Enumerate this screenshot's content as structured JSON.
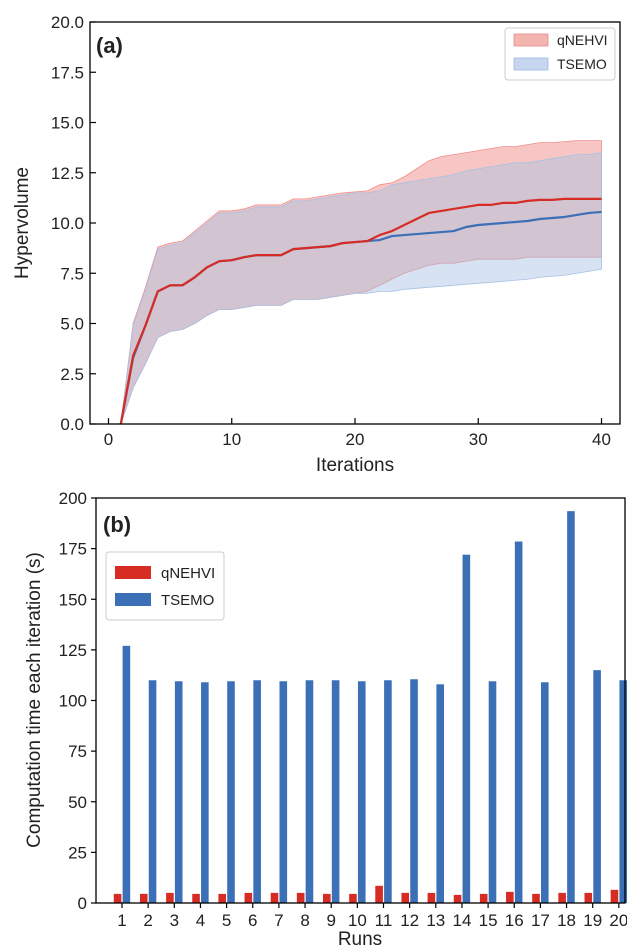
{
  "chart_data": [
    {
      "panel_label": "(a)",
      "type": "line",
      "xlabel": "Iterations",
      "ylabel": "Hypervolume",
      "xlim": [
        -1.5,
        41.5
      ],
      "ylim": [
        0,
        20
      ],
      "xticks": [
        0,
        10,
        20,
        30,
        40
      ],
      "yticks": [
        0.0,
        2.5,
        5.0,
        7.5,
        10.0,
        12.5,
        15.0,
        17.5,
        20.0
      ],
      "ytick_labels": [
        "0.0",
        "2.5",
        "5.0",
        "7.5",
        "10.0",
        "12.5",
        "15.0",
        "17.5",
        "20.0"
      ],
      "grid": false,
      "legend_position": "top-right",
      "x": [
        1,
        2,
        3,
        4,
        5,
        6,
        7,
        8,
        9,
        10,
        11,
        12,
        13,
        14,
        15,
        16,
        17,
        18,
        19,
        20,
        21,
        22,
        23,
        24,
        25,
        26,
        27,
        28,
        29,
        30,
        31,
        32,
        33,
        34,
        35,
        36,
        37,
        38,
        39,
        40
      ],
      "series": [
        {
          "name": "qNEHVI",
          "line_color": "#d62c24",
          "band_color": "#f08e8a",
          "mean": [
            0,
            3.4,
            4.9,
            6.6,
            6.9,
            6.9,
            7.3,
            7.8,
            8.1,
            8.15,
            8.3,
            8.4,
            8.4,
            8.4,
            8.7,
            8.75,
            8.8,
            8.85,
            9.0,
            9.05,
            9.1,
            9.4,
            9.6,
            9.9,
            10.2,
            10.5,
            10.6,
            10.7,
            10.8,
            10.9,
            10.9,
            11.0,
            11.0,
            11.1,
            11.15,
            11.15,
            11.2,
            11.2,
            11.2,
            11.2
          ],
          "upper": [
            0,
            5.0,
            6.8,
            8.8,
            9.0,
            9.1,
            9.6,
            10.1,
            10.6,
            10.6,
            10.7,
            10.9,
            10.9,
            10.9,
            11.2,
            11.2,
            11.3,
            11.4,
            11.5,
            11.55,
            11.6,
            11.9,
            12.0,
            12.3,
            12.7,
            13.1,
            13.3,
            13.4,
            13.5,
            13.6,
            13.7,
            13.8,
            13.8,
            13.9,
            14.0,
            14.0,
            14.05,
            14.1,
            14.1,
            14.1
          ],
          "lower": [
            0,
            1.8,
            3.0,
            4.3,
            4.6,
            4.7,
            5.0,
            5.4,
            5.7,
            5.7,
            5.8,
            5.9,
            5.9,
            5.9,
            6.2,
            6.2,
            6.2,
            6.3,
            6.4,
            6.5,
            6.6,
            6.9,
            7.2,
            7.5,
            7.7,
            7.9,
            8.0,
            8.0,
            8.1,
            8.2,
            8.2,
            8.2,
            8.2,
            8.3,
            8.3,
            8.3,
            8.3,
            8.3,
            8.3,
            8.3
          ]
        },
        {
          "name": "TSEMO",
          "line_color": "#3b6fb6",
          "band_color": "#a7c1e4",
          "mean": [
            0,
            3.3,
            4.9,
            6.6,
            6.9,
            6.9,
            7.3,
            7.8,
            8.1,
            8.15,
            8.3,
            8.4,
            8.4,
            8.4,
            8.7,
            8.75,
            8.8,
            8.85,
            9.0,
            9.05,
            9.1,
            9.15,
            9.35,
            9.4,
            9.45,
            9.5,
            9.55,
            9.6,
            9.8,
            9.9,
            9.95,
            10.0,
            10.05,
            10.1,
            10.2,
            10.25,
            10.3,
            10.4,
            10.5,
            10.55
          ],
          "upper": [
            0,
            4.9,
            6.7,
            8.7,
            8.9,
            9.0,
            9.5,
            10.0,
            10.5,
            10.5,
            10.6,
            10.8,
            10.8,
            10.8,
            11.1,
            11.1,
            11.2,
            11.3,
            11.4,
            11.5,
            11.5,
            11.6,
            11.9,
            12.0,
            12.1,
            12.2,
            12.3,
            12.4,
            12.6,
            12.7,
            12.8,
            12.9,
            13.0,
            13.0,
            13.1,
            13.2,
            13.3,
            13.4,
            13.4,
            13.5
          ],
          "lower": [
            0,
            1.8,
            3.0,
            4.3,
            4.6,
            4.7,
            5.0,
            5.4,
            5.7,
            5.7,
            5.8,
            5.9,
            5.9,
            5.9,
            6.2,
            6.2,
            6.2,
            6.3,
            6.4,
            6.5,
            6.5,
            6.6,
            6.6,
            6.7,
            6.75,
            6.8,
            6.85,
            6.9,
            6.95,
            7.0,
            7.05,
            7.1,
            7.15,
            7.2,
            7.3,
            7.35,
            7.4,
            7.5,
            7.6,
            7.7
          ]
        }
      ]
    },
    {
      "panel_label": "(b)",
      "type": "bar",
      "xlabel": "Runs",
      "ylabel": "Computation time each iteration (s)",
      "categories": [
        "1",
        "2",
        "3",
        "4",
        "5",
        "6",
        "7",
        "8",
        "9",
        "10",
        "11",
        "12",
        "13",
        "14",
        "15",
        "16",
        "17",
        "18",
        "19",
        "20"
      ],
      "ylim": [
        0,
        200
      ],
      "yticks": [
        0,
        25,
        50,
        75,
        100,
        125,
        150,
        175,
        200
      ],
      "grid": false,
      "legend_position": "top-left",
      "series": [
        {
          "name": "qNEHVI",
          "color": "#d62c24",
          "values": [
            4.5,
            4.5,
            5,
            4.5,
            4.5,
            5,
            5,
            5,
            4.5,
            4.5,
            8.5,
            5,
            5,
            4,
            4.5,
            5.5,
            4.5,
            5,
            5,
            6.5
          ]
        },
        {
          "name": "TSEMO",
          "color": "#3b6fb6",
          "values": [
            127,
            110,
            109.5,
            109,
            109.5,
            110,
            109.5,
            110,
            110,
            109.5,
            110,
            110.5,
            108,
            172,
            109.5,
            178.5,
            109,
            193.5,
            115,
            110
          ]
        }
      ]
    }
  ]
}
